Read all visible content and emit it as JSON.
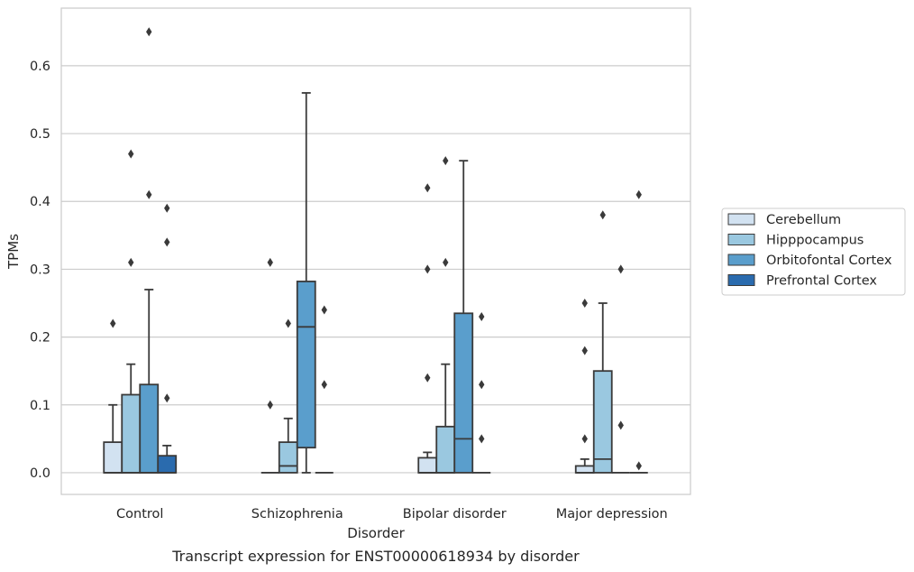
{
  "chart_data": {
    "type": "box",
    "caption": "Transcript expression for ENST00000618934 by disorder",
    "xlabel": "Disorder",
    "ylabel": "TPMs",
    "ylim": [
      -0.032,
      0.685
    ],
    "yticks": [
      0.0,
      0.1,
      0.2,
      0.3,
      0.4,
      0.5,
      0.6
    ],
    "ytick_labels": [
      "0.0",
      "0.1",
      "0.2",
      "0.3",
      "0.4",
      "0.5",
      "0.6"
    ],
    "grid": "horizontal",
    "legend_position": "right",
    "categories": [
      "Control",
      "Schizophrenia",
      "Bipolar disorder",
      "Major depression"
    ],
    "series": [
      {
        "name": "Cerebellum",
        "color": "#d2e2f1",
        "boxes": [
          {
            "q1": 0.0,
            "median": 0.0,
            "q3": 0.045,
            "whisker_low": 0.0,
            "whisker_high": 0.1,
            "outliers": [
              0.22
            ]
          },
          {
            "q1": 0.0,
            "median": 0.0,
            "q3": 0.0,
            "whisker_low": 0.0,
            "whisker_high": 0.0,
            "outliers": [
              0.1,
              0.31
            ]
          },
          {
            "q1": 0.0,
            "median": 0.0,
            "q3": 0.022,
            "whisker_low": 0.0,
            "whisker_high": 0.03,
            "outliers": [
              0.14,
              0.3,
              0.42
            ]
          },
          {
            "q1": 0.0,
            "median": 0.0,
            "q3": 0.01,
            "whisker_low": 0.0,
            "whisker_high": 0.02,
            "outliers": [
              0.05,
              0.18,
              0.25
            ]
          }
        ]
      },
      {
        "name": "Hipppocampus",
        "color": "#9ac8e0",
        "boxes": [
          {
            "q1": 0.0,
            "median": 0.0,
            "q3": 0.115,
            "whisker_low": 0.0,
            "whisker_high": 0.16,
            "outliers": [
              0.31,
              0.47
            ]
          },
          {
            "q1": 0.0,
            "median": 0.01,
            "q3": 0.045,
            "whisker_low": 0.0,
            "whisker_high": 0.08,
            "outliers": [
              0.22
            ]
          },
          {
            "q1": 0.0,
            "median": 0.0,
            "q3": 0.068,
            "whisker_low": 0.0,
            "whisker_high": 0.16,
            "outliers": [
              0.31,
              0.46
            ]
          },
          {
            "q1": 0.0,
            "median": 0.02,
            "q3": 0.15,
            "whisker_low": 0.0,
            "whisker_high": 0.25,
            "outliers": [
              0.38
            ]
          }
        ]
      },
      {
        "name": "Orbitofontal Cortex",
        "color": "#5a9ecc",
        "boxes": [
          {
            "q1": 0.0,
            "median": 0.0,
            "q3": 0.13,
            "whisker_low": 0.0,
            "whisker_high": 0.27,
            "outliers": [
              0.41,
              0.65
            ]
          },
          {
            "q1": 0.037,
            "median": 0.215,
            "q3": 0.282,
            "whisker_low": 0.0,
            "whisker_high": 0.56,
            "outliers": []
          },
          {
            "q1": 0.0,
            "median": 0.05,
            "q3": 0.235,
            "whisker_low": 0.0,
            "whisker_high": 0.46,
            "outliers": []
          },
          {
            "q1": 0.0,
            "median": 0.0,
            "q3": 0.0,
            "whisker_low": 0.0,
            "whisker_high": 0.0,
            "outliers": [
              0.07,
              0.3
            ]
          }
        ]
      },
      {
        "name": "Prefrontal Cortex",
        "color": "#2a6bae",
        "boxes": [
          {
            "q1": 0.0,
            "median": 0.0,
            "q3": 0.025,
            "whisker_low": 0.0,
            "whisker_high": 0.04,
            "outliers": [
              0.11,
              0.34,
              0.39
            ]
          },
          {
            "q1": 0.0,
            "median": 0.0,
            "q3": 0.0,
            "whisker_low": 0.0,
            "whisker_high": 0.0,
            "outliers": [
              0.13,
              0.24
            ]
          },
          {
            "q1": 0.0,
            "median": 0.0,
            "q3": 0.0,
            "whisker_low": 0.0,
            "whisker_high": 0.0,
            "outliers": [
              0.05,
              0.13,
              0.23
            ]
          },
          {
            "q1": 0.0,
            "median": 0.0,
            "q3": 0.0,
            "whisker_low": 0.0,
            "whisker_high": 0.0,
            "outliers": [
              0.01,
              0.41
            ]
          }
        ]
      }
    ]
  }
}
